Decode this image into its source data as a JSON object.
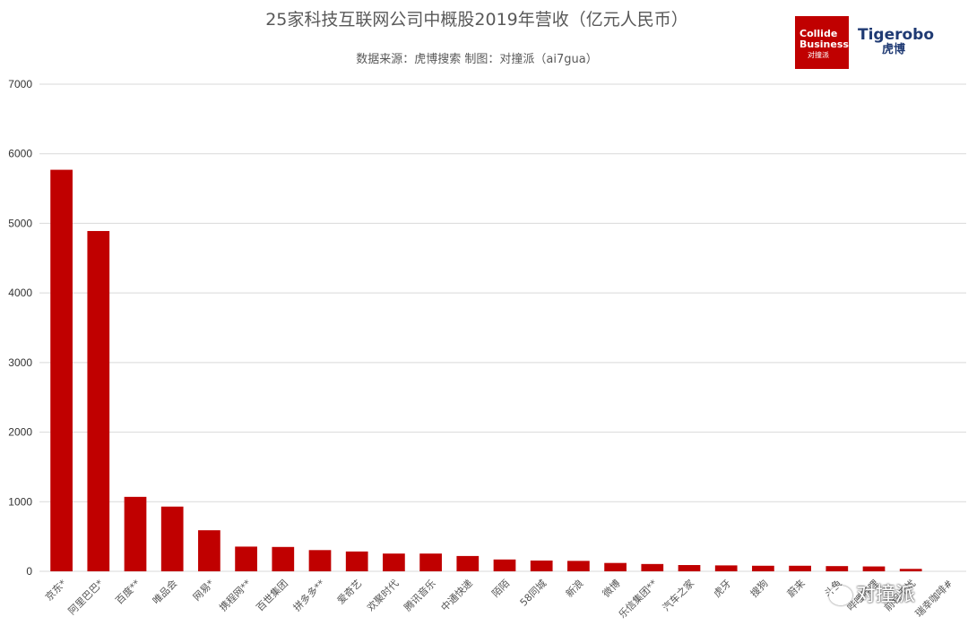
{
  "chart_data": {
    "type": "bar",
    "title": "25家科技互联网公司中概股2019年营收（亿元人民币）",
    "subtitle": "数据来源：虎博搜索  制图：对撞派（ai7gua）",
    "categories": [
      "京东*",
      "阿里巴巴*",
      "百度**",
      "唯品会",
      "网易*",
      "携程网**",
      "百世集团",
      "拼多多**",
      "爱奇艺",
      "欢聚时代",
      "腾讯音乐",
      "中通快递",
      "陌陌",
      "58同城",
      "新浪",
      "微博",
      "乐信集团**",
      "汽车之家",
      "虎牙",
      "搜狗",
      "蔚来",
      "斗鱼",
      "哔哩哔哩",
      "前程无忧",
      "瑞幸咖啡#"
    ],
    "values": [
      5770,
      4890,
      1070,
      930,
      590,
      355,
      350,
      305,
      285,
      255,
      255,
      220,
      170,
      155,
      150,
      120,
      105,
      90,
      85,
      80,
      80,
      75,
      70,
      35,
      0
    ],
    "yticks": [
      0,
      1000,
      2000,
      3000,
      4000,
      5000,
      6000,
      7000
    ],
    "ylim": [
      0,
      7000
    ],
    "bar_color": "#c00000",
    "grid": true,
    "legend": "none"
  },
  "logos": {
    "collide_line1": "Collide",
    "collide_line2": "Business",
    "collide_line3": "对撞派",
    "tiger_line1": "Tigerobo",
    "tiger_line2": "虎博"
  },
  "watermark": {
    "text": "对撞派",
    "icon": "wechat-icon"
  }
}
